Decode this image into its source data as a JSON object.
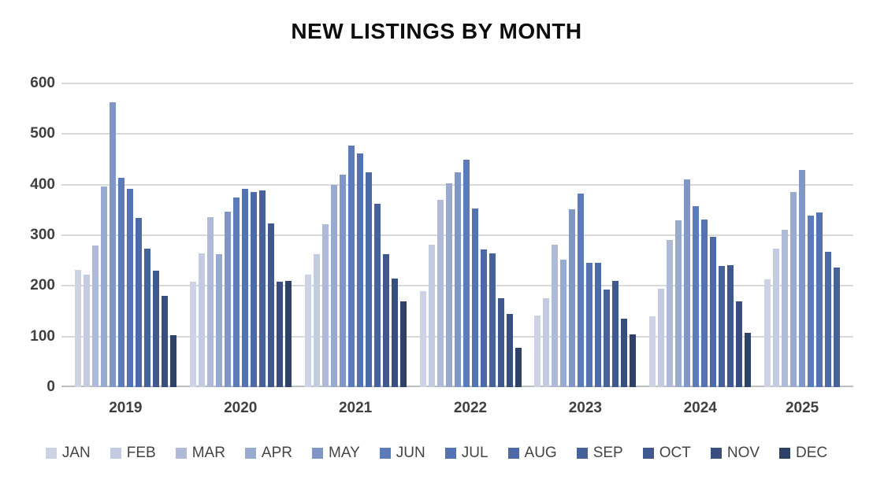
{
  "chart_data": {
    "type": "bar",
    "title": "NEW LISTINGS BY MONTH",
    "xlabel": "",
    "ylabel": "",
    "categories": [
      "2019",
      "2020",
      "2021",
      "2022",
      "2023",
      "2024",
      "2025"
    ],
    "series": [
      {
        "name": "JAN",
        "color": "#cdd3e5",
        "values": [
          232,
          209,
          223,
          190,
          142,
          140,
          213
        ]
      },
      {
        "name": "FEB",
        "color": "#c2cbe0",
        "values": [
          222,
          264,
          263,
          282,
          175,
          195,
          273
        ]
      },
      {
        "name": "MAR",
        "color": "#aebad8",
        "values": [
          280,
          336,
          322,
          370,
          282,
          290,
          311
        ]
      },
      {
        "name": "APR",
        "color": "#99aacf",
        "values": [
          397,
          263,
          400,
          402,
          252,
          330,
          386
        ]
      },
      {
        "name": "MAY",
        "color": "#8097c5",
        "values": [
          562,
          346,
          420,
          424,
          352,
          410,
          429
        ]
      },
      {
        "name": "JUN",
        "color": "#5b7bba",
        "values": [
          413,
          375,
          478,
          450,
          382,
          358,
          339
        ]
      },
      {
        "name": "JUL",
        "color": "#5473b2",
        "values": [
          392,
          392,
          461,
          353,
          245,
          331,
          345
        ]
      },
      {
        "name": "AUG",
        "color": "#4d6aa8",
        "values": [
          334,
          385,
          425,
          272,
          245,
          297,
          267
        ]
      },
      {
        "name": "SEP",
        "color": "#46629b",
        "values": [
          274,
          389,
          362,
          264,
          193,
          239,
          237
        ]
      },
      {
        "name": "OCT",
        "color": "#3f588d",
        "values": [
          230,
          323,
          262,
          175,
          210,
          241,
          null
        ]
      },
      {
        "name": "NOV",
        "color": "#384e7e",
        "values": [
          180,
          208,
          214,
          145,
          135,
          169,
          null
        ]
      },
      {
        "name": "DEC",
        "color": "#2e4267",
        "values": [
          103,
          210,
          170,
          78,
          104,
          108,
          null
        ]
      }
    ],
    "ylim": [
      0,
      600
    ],
    "yticks": [
      0,
      100,
      200,
      300,
      400,
      500,
      600
    ],
    "grid": true,
    "legend_position": "bottom"
  },
  "style": {
    "gridline_color": "#d9d9d9",
    "axis_line_color": "#bfbfbf",
    "tick_label_color": "#404040",
    "title_color": "#0d0d0d",
    "legend_text_color": "#444444",
    "background_color": "#ffffff"
  }
}
